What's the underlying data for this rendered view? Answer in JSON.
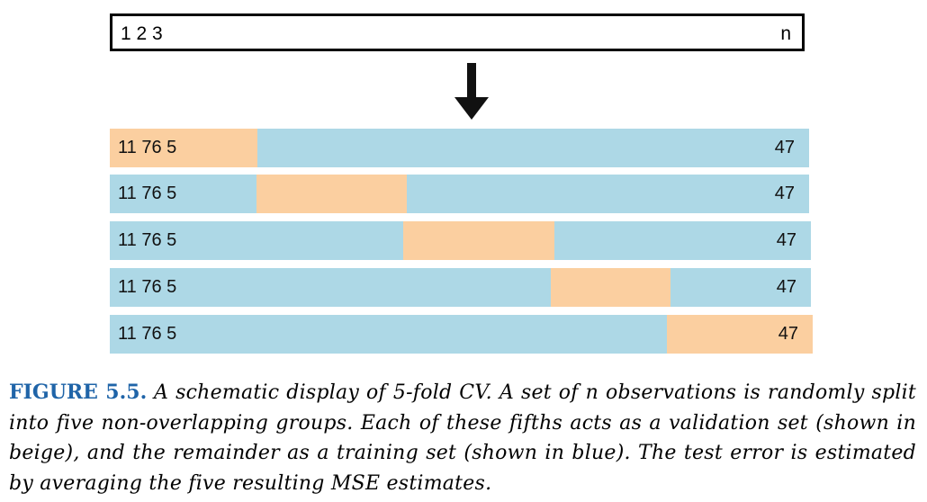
{
  "observation_box": {
    "left_label": "1 2 3",
    "right_label": "n"
  },
  "folds": [
    {
      "left_label": "11 76 5",
      "right_label": "47",
      "validation_segment": 1
    },
    {
      "left_label": "11 76 5",
      "right_label": "47",
      "validation_segment": 2
    },
    {
      "left_label": "11 76 5",
      "right_label": "47",
      "validation_segment": 3
    },
    {
      "left_label": "11 76 5",
      "right_label": "47",
      "validation_segment": 4
    },
    {
      "left_label": "11 76 5",
      "right_label": "47",
      "validation_segment": 5
    }
  ],
  "colors": {
    "training": "#add8e6",
    "validation": "#fbcfa0",
    "caption_label": "#1f64a8"
  },
  "caption": {
    "label": "FIGURE 5.5.",
    "text": "A schematic display of 5-fold CV. A set of n observations is randomly split into five non-overlapping groups. Each of these fifths acts as a validation set (shown in beige), and the remainder as a training set (shown in blue). The test error is estimated by averaging the five resulting MSE estimates."
  }
}
